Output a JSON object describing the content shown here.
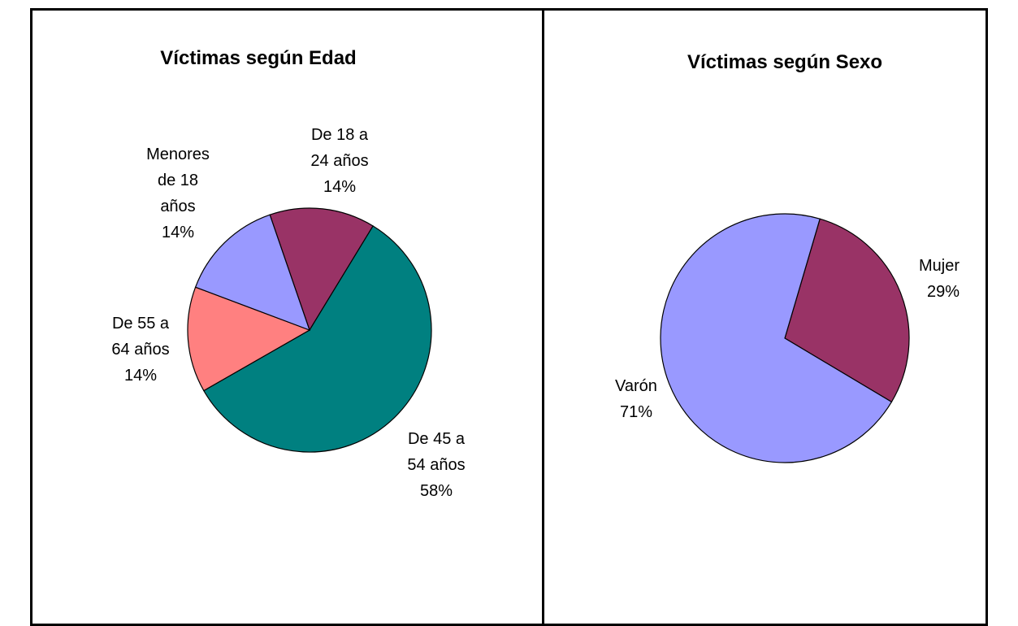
{
  "chart_data": [
    {
      "type": "pie",
      "title": "Víctimas según Edad",
      "categories": [
        "De 18 a 24 años",
        "De 45 a 54 años",
        "De 55 a 64 años",
        "Menores de 18 años"
      ],
      "values": [
        14,
        58,
        14,
        14
      ],
      "value_labels": [
        "14%",
        "58%",
        "14%",
        "14%"
      ],
      "colors": [
        "#993366",
        "#008080",
        "#ff8080",
        "#9999ff"
      ]
    },
    {
      "type": "pie",
      "title": "Víctimas según Sexo",
      "categories": [
        "Mujer",
        "Varón"
      ],
      "values": [
        29,
        71
      ],
      "value_labels": [
        "29%",
        "71%"
      ],
      "colors": [
        "#993366",
        "#9999ff"
      ]
    }
  ]
}
